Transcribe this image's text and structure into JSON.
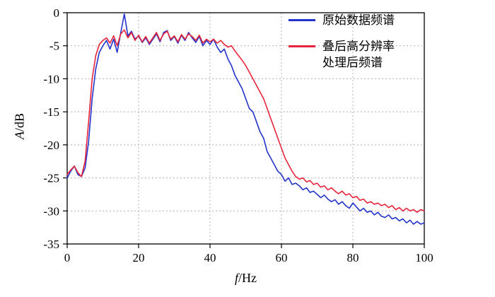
{
  "chart_data": {
    "type": "line",
    "title": "",
    "xlabel": "f/Hz",
    "ylabel": "A/dB",
    "xlim": [
      0,
      100
    ],
    "ylim": [
      -35,
      0
    ],
    "xticks": [
      0,
      20,
      40,
      60,
      80,
      100
    ],
    "yticks": [
      0,
      -5,
      -10,
      -15,
      -20,
      -25,
      -30,
      -35
    ],
    "grid": true,
    "legend_position": "top-right",
    "x": [
      0,
      1,
      2,
      3,
      4,
      5,
      6,
      7,
      8,
      9,
      10,
      11,
      12,
      13,
      14,
      15,
      16,
      17,
      18,
      19,
      20,
      21,
      22,
      23,
      24,
      25,
      26,
      27,
      28,
      29,
      30,
      31,
      32,
      33,
      34,
      35,
      36,
      37,
      38,
      39,
      40,
      41,
      42,
      43,
      44,
      45,
      46,
      47,
      48,
      49,
      50,
      51,
      52,
      53,
      54,
      55,
      56,
      57,
      58,
      59,
      60,
      61,
      62,
      63,
      64,
      65,
      66,
      67,
      68,
      69,
      70,
      71,
      72,
      73,
      74,
      75,
      76,
      77,
      78,
      79,
      80,
      81,
      82,
      83,
      84,
      85,
      86,
      87,
      88,
      89,
      90,
      91,
      92,
      93,
      94,
      95,
      96,
      97,
      98,
      99,
      100
    ],
    "series": [
      {
        "name": "原始数据频谱",
        "color": "#2233cc",
        "values": [
          -25.0,
          -24.0,
          -23.2,
          -24.5,
          -24.8,
          -23.5,
          -19.5,
          -13.0,
          -8.5,
          -6.0,
          -5.0,
          -4.2,
          -5.5,
          -4.0,
          -6.0,
          -3.0,
          -0.2,
          -3.5,
          -2.8,
          -4.0,
          -3.5,
          -4.5,
          -3.8,
          -4.8,
          -4.0,
          -3.2,
          -4.4,
          -3.0,
          -2.7,
          -4.2,
          -3.6,
          -4.6,
          -3.4,
          -4.2,
          -3.0,
          -3.8,
          -4.5,
          -3.6,
          -5.0,
          -4.2,
          -4.8,
          -4.0,
          -5.2,
          -6.0,
          -5.5,
          -7.0,
          -8.0,
          -9.5,
          -10.5,
          -11.5,
          -13.0,
          -14.5,
          -15.0,
          -16.5,
          -18.0,
          -19.0,
          -21.0,
          -22.0,
          -23.0,
          -24.0,
          -24.5,
          -25.5,
          -25.0,
          -26.0,
          -25.8,
          -26.2,
          -26.8,
          -26.5,
          -27.2,
          -27.0,
          -27.5,
          -28.0,
          -27.6,
          -28.2,
          -28.6,
          -28.3,
          -29.0,
          -28.6,
          -29.2,
          -29.6,
          -28.8,
          -29.4,
          -30.0,
          -29.6,
          -30.2,
          -30.0,
          -30.6,
          -30.2,
          -30.8,
          -31.0,
          -30.6,
          -31.2,
          -31.0,
          -31.5,
          -31.2,
          -31.8,
          -31.4,
          -32.0,
          -31.6,
          -32.0,
          -31.8
        ]
      },
      {
        "name": "叠后高分辨率处理后频谱",
        "color": "#e8243a",
        "values": [
          -24.5,
          -23.8,
          -23.2,
          -24.2,
          -24.8,
          -22.5,
          -16.5,
          -10.0,
          -6.5,
          -4.8,
          -4.2,
          -3.8,
          -4.6,
          -3.5,
          -5.0,
          -3.2,
          -2.6,
          -3.8,
          -3.0,
          -4.2,
          -3.4,
          -4.4,
          -3.6,
          -4.6,
          -3.8,
          -3.0,
          -4.2,
          -3.2,
          -2.8,
          -4.0,
          -3.5,
          -4.4,
          -3.3,
          -4.0,
          -3.2,
          -3.6,
          -4.2,
          -3.4,
          -4.6,
          -4.0,
          -4.4,
          -4.0,
          -4.6,
          -4.2,
          -4.8,
          -5.2,
          -5.0,
          -5.8,
          -6.5,
          -7.2,
          -8.0,
          -9.0,
          -10.0,
          -11.0,
          -12.0,
          -13.0,
          -14.5,
          -16.0,
          -17.5,
          -19.0,
          -20.5,
          -22.0,
          -23.0,
          -24.0,
          -24.8,
          -25.2,
          -25.0,
          -25.6,
          -25.4,
          -26.0,
          -25.8,
          -26.4,
          -26.2,
          -26.8,
          -26.5,
          -27.0,
          -27.4,
          -27.0,
          -27.6,
          -27.4,
          -28.0,
          -27.8,
          -28.4,
          -28.2,
          -28.8,
          -28.6,
          -29.0,
          -28.8,
          -29.2,
          -29.0,
          -29.5,
          -29.2,
          -29.8,
          -29.5,
          -30.0,
          -29.6,
          -30.0,
          -29.8,
          -30.2,
          -29.8,
          -30.0
        ]
      }
    ]
  },
  "legend": {
    "items": [
      {
        "lines": [
          "原始数据频谱"
        ],
        "color": "#2233cc"
      },
      {
        "lines": [
          "叠后高分辨率",
          "处理后频谱"
        ],
        "color": "#e8243a"
      }
    ]
  },
  "axis_labels": {
    "x_var": "f",
    "x_unit": "/Hz",
    "y_var": "A",
    "y_unit": "/dB"
  },
  "style": {
    "grid_color": "#b0b0b0",
    "frame_color": "#000000"
  }
}
